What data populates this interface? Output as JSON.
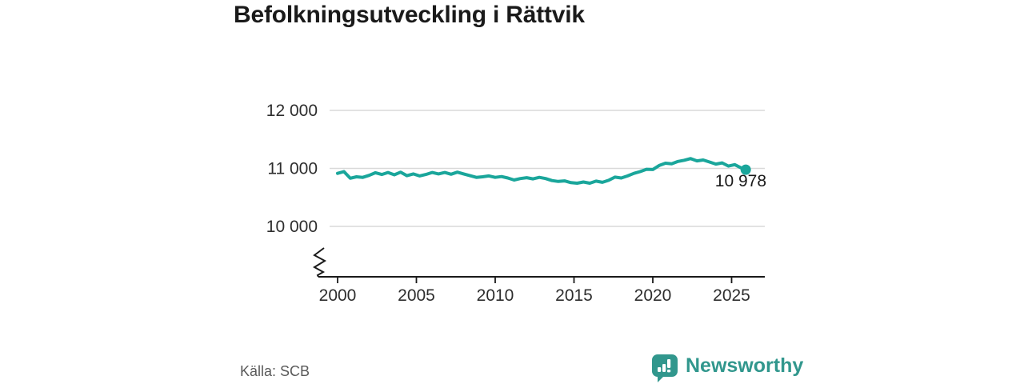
{
  "header": {
    "title": "Befolkningsutveckling i Rättvik"
  },
  "footer": {
    "source": "Källa: SCB"
  },
  "brand": {
    "name": "Newsworthy",
    "color": "#31978d",
    "icon": "bar-chart-speech-bubble-icon"
  },
  "chart_data": {
    "type": "line",
    "title": "Befolkningsutveckling i Rättvik",
    "xlabel": "",
    "ylabel": "",
    "line_color": "#1aa69b",
    "marker_color": "#1aa69b",
    "grid": true,
    "axis_break": true,
    "legend": "none",
    "ylim": [
      10000,
      12000
    ],
    "y_tick_labels_top_down": [
      "12 000",
      "11 000",
      "10 000"
    ],
    "y_tick_values": [
      12000,
      11000,
      10000
    ],
    "x_tick_labels": [
      "2000",
      "2005",
      "2010",
      "2015",
      "2020",
      "2025"
    ],
    "x_tick_values": [
      2000,
      2005,
      2010,
      2015,
      2020,
      2025
    ],
    "end_label": "10 978",
    "end_value": 10978,
    "x": [
      2000.0,
      2000.4,
      2000.8,
      2001.2,
      2001.6,
      2002.0,
      2002.4,
      2002.8,
      2003.2,
      2003.6,
      2004.0,
      2004.4,
      2004.8,
      2005.2,
      2005.6,
      2006.0,
      2006.4,
      2006.8,
      2007.2,
      2007.6,
      2008.0,
      2008.4,
      2008.8,
      2009.2,
      2009.6,
      2010.0,
      2010.4,
      2010.8,
      2011.2,
      2011.6,
      2012.0,
      2012.4,
      2012.8,
      2013.2,
      2013.6,
      2014.0,
      2014.4,
      2014.8,
      2015.2,
      2015.6,
      2016.0,
      2016.4,
      2016.8,
      2017.2,
      2017.6,
      2018.0,
      2018.4,
      2018.8,
      2019.2,
      2019.6,
      2020.0,
      2020.4,
      2020.8,
      2021.2,
      2021.6,
      2022.0,
      2022.4,
      2022.8,
      2023.2,
      2023.6,
      2024.0,
      2024.4,
      2024.8,
      2025.2,
      2025.6,
      2025.9
    ],
    "values": [
      10915,
      10945,
      10830,
      10855,
      10845,
      10880,
      10925,
      10895,
      10930,
      10890,
      10935,
      10875,
      10905,
      10870,
      10895,
      10930,
      10905,
      10930,
      10900,
      10935,
      10905,
      10875,
      10845,
      10855,
      10870,
      10845,
      10860,
      10835,
      10800,
      10825,
      10840,
      10820,
      10845,
      10825,
      10790,
      10775,
      10785,
      10755,
      10745,
      10765,
      10745,
      10780,
      10760,
      10795,
      10850,
      10835,
      10870,
      10915,
      10945,
      10985,
      10980,
      11050,
      11090,
      11080,
      11120,
      11140,
      11170,
      11130,
      11145,
      11110,
      11075,
      11095,
      11040,
      11065,
      11010,
      10978
    ]
  }
}
